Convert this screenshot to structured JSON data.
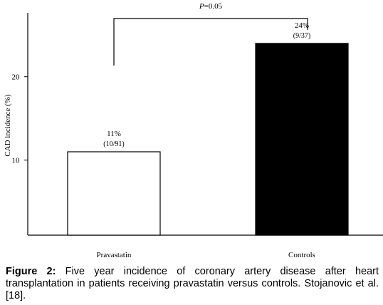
{
  "chart_data": {
    "type": "bar",
    "categories": [
      "Pravastatin",
      "Controls"
    ],
    "values": [
      11,
      24
    ],
    "bar_labels": [
      "11%",
      "24%"
    ],
    "bar_sublabels": [
      "(10/91)",
      "(9/37)"
    ],
    "bar_colors": [
      "#ffffff",
      "#000000"
    ],
    "ylabel": "CAD incidence (%)",
    "yticks": [
      10,
      20
    ],
    "ylim": [
      1,
      28
    ],
    "significance": {
      "italic": "P",
      "rest": "=0.05"
    }
  },
  "caption": {
    "label": "Figure 2:",
    "text": " Five year incidence of coronary artery disease after heart transplantation in patients receiving pravastatin versus controls. Stojanovic et al. [18]."
  }
}
